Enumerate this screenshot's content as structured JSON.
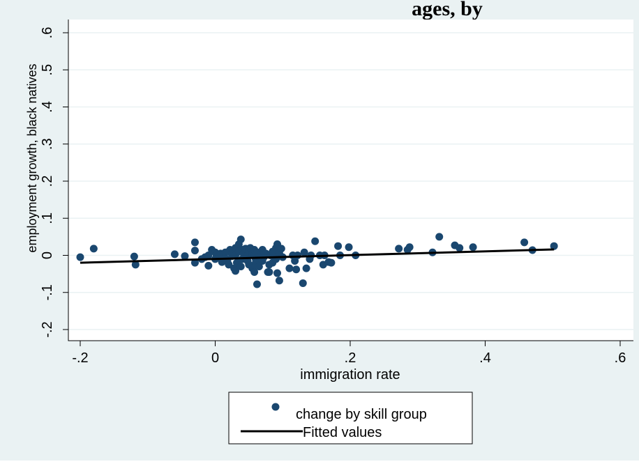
{
  "chart_data": {
    "type": "scatter",
    "title": "ages, by",
    "xlabel": "immigration rate",
    "ylabel": "employment growth, black natives",
    "xlim": [
      -0.2,
      0.6
    ],
    "ylim": [
      -0.2,
      0.6
    ],
    "x_ticks": [
      -0.2,
      0,
      0.2,
      0.4,
      0.6
    ],
    "x_tick_labels": [
      "-.2",
      "0",
      ".2",
      ".4",
      ".6"
    ],
    "y_ticks": [
      -0.2,
      -0.1,
      0,
      0.1,
      0.2,
      0.3,
      0.4,
      0.5,
      0.6
    ],
    "y_tick_labels": [
      "-.2",
      "-.1",
      "0",
      ".1",
      ".2",
      ".3",
      ".4",
      ".5",
      ".6"
    ],
    "grid": true,
    "legend": {
      "placement": "bottom",
      "entries": [
        "change by skill group",
        "Fitted values"
      ]
    },
    "colors": {
      "outer_background": "#eaf2f3",
      "plot_background": "#ffffff",
      "marker": "#1a476f",
      "fit_line": "#000000",
      "grid": "#eaf2f3"
    },
    "series": [
      {
        "name": "change by skill group",
        "type": "scatter",
        "points": [
          [
            -0.2,
            -0.005
          ],
          [
            -0.18,
            0.018
          ],
          [
            -0.12,
            -0.003
          ],
          [
            -0.118,
            -0.025
          ],
          [
            -0.06,
            0.003
          ],
          [
            -0.045,
            -0.002
          ],
          [
            -0.03,
            0.035
          ],
          [
            -0.03,
            0.013
          ],
          [
            -0.03,
            -0.02
          ],
          [
            -0.02,
            -0.01
          ],
          [
            -0.015,
            -0.005
          ],
          [
            -0.01,
            0.0
          ],
          [
            -0.01,
            -0.028
          ],
          [
            -0.005,
            0.015
          ],
          [
            0.0,
            -0.01
          ],
          [
            0.0,
            0.008
          ],
          [
            0.002,
            0.0
          ],
          [
            0.005,
            -0.005
          ],
          [
            0.008,
            0.005
          ],
          [
            0.01,
            -0.018
          ],
          [
            0.012,
            0.002
          ],
          [
            0.015,
            0.008
          ],
          [
            0.015,
            -0.008
          ],
          [
            0.018,
            -0.015
          ],
          [
            0.02,
            0.01
          ],
          [
            0.02,
            -0.025
          ],
          [
            0.022,
            0.015
          ],
          [
            0.025,
            -0.002
          ],
          [
            0.025,
            0.005
          ],
          [
            0.028,
            -0.035
          ],
          [
            0.03,
            0.02
          ],
          [
            0.03,
            0.0
          ],
          [
            0.03,
            -0.042
          ],
          [
            0.032,
            -0.02
          ],
          [
            0.035,
            0.01
          ],
          [
            0.035,
            0.03
          ],
          [
            0.038,
            0.043
          ],
          [
            0.038,
            -0.03
          ],
          [
            0.04,
            0.015
          ],
          [
            0.04,
            -0.01
          ],
          [
            0.042,
            0.005
          ],
          [
            0.045,
            -0.005
          ],
          [
            0.045,
            0.018
          ],
          [
            0.048,
            0.0
          ],
          [
            0.048,
            -0.015
          ],
          [
            0.05,
            0.012
          ],
          [
            0.05,
            -0.025
          ],
          [
            0.052,
            0.02
          ],
          [
            0.055,
            -0.035
          ],
          [
            0.055,
            0.005
          ],
          [
            0.058,
            -0.045
          ],
          [
            0.058,
            0.015
          ],
          [
            0.06,
            -0.01
          ],
          [
            0.06,
            -0.02
          ],
          [
            0.062,
            0.008
          ],
          [
            0.062,
            -0.078
          ],
          [
            0.065,
            -0.03
          ],
          [
            0.068,
            0.0
          ],
          [
            0.07,
            -0.015
          ],
          [
            0.07,
            0.015
          ],
          [
            0.072,
            -0.005
          ],
          [
            0.075,
            0.005
          ],
          [
            0.078,
            -0.045
          ],
          [
            0.08,
            -0.025
          ],
          [
            0.08,
            -0.045
          ],
          [
            0.082,
            0.0
          ],
          [
            0.085,
            0.01
          ],
          [
            0.085,
            -0.02
          ],
          [
            0.088,
            -0.005
          ],
          [
            0.09,
            0.02
          ],
          [
            0.09,
            -0.01
          ],
          [
            0.092,
            0.03
          ],
          [
            0.092,
            -0.048
          ],
          [
            0.095,
            -0.068
          ],
          [
            0.095,
            0.005
          ],
          [
            0.098,
            0.018
          ],
          [
            0.1,
            -0.005
          ],
          [
            0.11,
            -0.035
          ],
          [
            0.115,
            0.0
          ],
          [
            0.118,
            -0.015
          ],
          [
            0.12,
            -0.038
          ],
          [
            0.122,
            0.0
          ],
          [
            0.13,
            -0.075
          ],
          [
            0.132,
            0.008
          ],
          [
            0.135,
            -0.035
          ],
          [
            0.14,
            -0.01
          ],
          [
            0.142,
            0.0
          ],
          [
            0.148,
            0.038
          ],
          [
            0.155,
            0.0
          ],
          [
            0.16,
            -0.025
          ],
          [
            0.162,
            0.0
          ],
          [
            0.168,
            -0.018
          ],
          [
            0.172,
            -0.02
          ],
          [
            0.182,
            0.025
          ],
          [
            0.185,
            0.0
          ],
          [
            0.198,
            0.022
          ],
          [
            0.208,
            0.0
          ],
          [
            0.272,
            0.018
          ],
          [
            0.285,
            0.015
          ],
          [
            0.288,
            0.022
          ],
          [
            0.322,
            0.008
          ],
          [
            0.332,
            0.05
          ],
          [
            0.355,
            0.027
          ],
          [
            0.362,
            0.02
          ],
          [
            0.382,
            0.022
          ],
          [
            0.458,
            0.035
          ],
          [
            0.47,
            0.014
          ],
          [
            0.502,
            0.025
          ]
        ]
      },
      {
        "name": "Fitted values",
        "type": "line",
        "points": [
          [
            -0.2,
            -0.02
          ],
          [
            0.502,
            0.016
          ]
        ]
      }
    ]
  }
}
